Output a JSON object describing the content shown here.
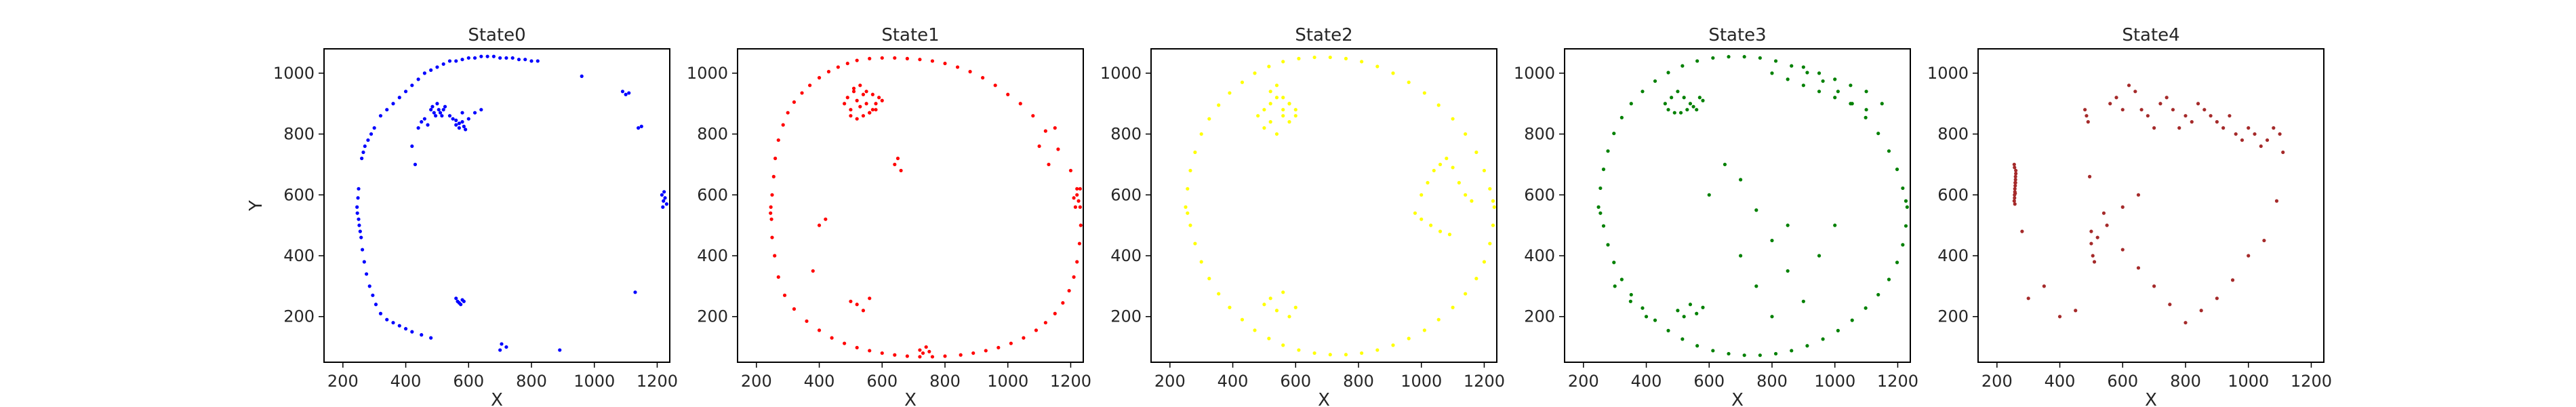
{
  "chart_data": [
    {
      "type": "scatter",
      "title": "State0",
      "xlabel": "X",
      "ylabel": "Y",
      "xlim": [
        140,
        1240
      ],
      "ylim": [
        50,
        1080
      ],
      "xticks": [
        "200",
        "400",
        "600",
        "800",
        "1000",
        "1200"
      ],
      "yticks": [
        "200",
        "400",
        "600",
        "800",
        "1000"
      ],
      "color": "#0000ff",
      "grid": false,
      "series": [
        {
          "x": [
            260,
            265,
            270,
            280,
            290,
            300,
            320,
            340,
            360,
            380,
            400,
            420,
            440,
            460,
            480,
            500,
            520,
            540,
            560,
            580,
            600,
            620,
            640,
            660,
            680,
            700,
            720,
            740,
            760,
            780,
            800,
            820,
            250,
            248,
            245,
            246,
            250,
            252,
            255,
            258,
            262,
            268,
            275,
            285,
            295,
            305,
            320,
            340,
            360,
            380,
            400,
            420,
            450,
            480,
            560,
            565,
            570,
            575,
            580,
            585,
            700,
            705,
            720,
            890,
            1130,
            1215,
            1220,
            1225,
            1230,
            1218,
            1222,
            560,
            570,
            580,
            585,
            590,
            540,
            550,
            560,
            570,
            580,
            480,
            485,
            490,
            495,
            500,
            505,
            510,
            515,
            520,
            525,
            1090,
            1100,
            1110,
            1140,
            1150,
            960,
            600,
            620,
            640,
            420,
            430,
            440,
            450,
            460,
            470
          ],
          "y": [
            720,
            740,
            760,
            780,
            800,
            820,
            860,
            880,
            900,
            920,
            940,
            960,
            980,
            1000,
            1010,
            1020,
            1030,
            1040,
            1040,
            1045,
            1050,
            1050,
            1055,
            1055,
            1055,
            1050,
            1050,
            1050,
            1045,
            1045,
            1040,
            1040,
            620,
            590,
            560,
            540,
            520,
            500,
            480,
            460,
            420,
            380,
            340,
            300,
            270,
            240,
            210,
            190,
            180,
            170,
            160,
            150,
            140,
            130,
            260,
            250,
            245,
            240,
            255,
            250,
            90,
            110,
            100,
            90,
            280,
            600,
            580,
            590,
            570,
            560,
            610,
            830,
            820,
            840,
            825,
            815,
            860,
            850,
            845,
            835,
            870,
            880,
            890,
            870,
            860,
            900,
            880,
            870,
            860,
            880,
            890,
            940,
            930,
            935,
            820,
            825,
            990,
            850,
            870,
            880,
            760,
            700,
            820,
            840,
            850,
            830
          ]
        }
      ]
    },
    {
      "type": "scatter",
      "title": "State1",
      "xlabel": "X",
      "ylabel": "",
      "xlim": [
        140,
        1240
      ],
      "ylim": [
        50,
        1080
      ],
      "xticks": [
        "200",
        "400",
        "600",
        "800",
        "1000",
        "1200"
      ],
      "yticks": [
        "200",
        "400",
        "600",
        "800",
        "1000"
      ],
      "color": "#ff0000",
      "grid": false,
      "series": [
        {
          "x": [
            250,
            255,
            260,
            270,
            285,
            300,
            320,
            345,
            370,
            400,
            430,
            460,
            490,
            520,
            560,
            600,
            640,
            680,
            720,
            760,
            800,
            840,
            880,
            920,
            960,
            1000,
            1040,
            1080,
            1120,
            1160,
            1200,
            1220,
            1230,
            1232,
            1228,
            1220,
            1210,
            1195,
            1175,
            1150,
            1120,
            1090,
            1050,
            1010,
            970,
            930,
            890,
            850,
            800,
            760,
            720,
            680,
            640,
            600,
            560,
            520,
            480,
            440,
            400,
            360,
            320,
            290,
            270,
            258,
            250,
            248,
            246,
            245,
            480,
            490,
            500,
            510,
            520,
            530,
            540,
            550,
            560,
            570,
            580,
            500,
            520,
            540,
            560,
            580,
            510,
            530,
            550,
            570,
            590,
            600,
            720,
            730,
            740,
            750,
            1220,
            1225,
            1215,
            1230,
            1210,
            640,
            650,
            660,
            1130,
            1150,
            1100,
            500,
            520,
            540,
            560,
            400,
            420,
            380
          ],
          "y": [
            600,
            660,
            720,
            780,
            830,
            870,
            905,
            935,
            960,
            985,
            1005,
            1020,
            1032,
            1042,
            1048,
            1050,
            1050,
            1048,
            1045,
            1040,
            1032,
            1020,
            1005,
            985,
            960,
            930,
            900,
            860,
            810,
            750,
            680,
            620,
            560,
            500,
            440,
            380,
            330,
            285,
            245,
            210,
            180,
            155,
            130,
            112,
            98,
            88,
            80,
            74,
            70,
            68,
            68,
            70,
            74,
            80,
            88,
            98,
            112,
            130,
            155,
            185,
            225,
            270,
            330,
            400,
            460,
            520,
            560,
            540,
            900,
            920,
            880,
            940,
            910,
            890,
            930,
            900,
            870,
            880,
            900,
            860,
            850,
            860,
            870,
            880,
            950,
            960,
            940,
            930,
            920,
            910,
            90,
            80,
            100,
            85,
            600,
            580,
            560,
            620,
            590,
            700,
            720,
            680,
            700,
            820,
            760,
            250,
            240,
            220,
            260,
            500,
            520,
            350
          ]
        }
      ]
    },
    {
      "type": "scatter",
      "title": "State2",
      "xlabel": "X",
      "ylabel": "",
      "xlim": [
        140,
        1240
      ],
      "ylim": [
        50,
        1080
      ],
      "xticks": [
        "200",
        "400",
        "600",
        "800",
        "1000",
        "1200"
      ],
      "yticks": [
        "200",
        "400",
        "600",
        "800",
        "1000"
      ],
      "color": "#ffff00",
      "grid": false,
      "series": [
        {
          "x": [
            250,
            256,
            265,
            280,
            300,
            325,
            355,
            390,
            430,
            470,
            515,
            560,
            610,
            660,
            710,
            760,
            810,
            860,
            910,
            960,
            1010,
            1055,
            1100,
            1140,
            1175,
            1200,
            1218,
            1228,
            1232,
            1228,
            1218,
            1200,
            1175,
            1140,
            1100,
            1055,
            1010,
            960,
            910,
            860,
            810,
            760,
            710,
            660,
            610,
            560,
            515,
            470,
            430,
            390,
            355,
            325,
            300,
            280,
            265,
            256,
            480,
            500,
            520,
            540,
            560,
            580,
            600,
            520,
            540,
            560,
            580,
            600,
            500,
            520,
            540,
            560,
            580,
            1000,
            1020,
            1040,
            1060,
            1080,
            1100,
            1120,
            1140,
            1160,
            980,
            1000,
            1030,
            1060,
            1090,
            500,
            520,
            540,
            560,
            580,
            600
          ],
          "y": [
            560,
            620,
            680,
            740,
            800,
            850,
            895,
            935,
            970,
            1000,
            1022,
            1038,
            1048,
            1052,
            1052,
            1048,
            1038,
            1022,
            1000,
            970,
            935,
            895,
            850,
            800,
            740,
            680,
            620,
            580,
            560,
            500,
            440,
            380,
            325,
            275,
            230,
            190,
            155,
            128,
            106,
            90,
            80,
            75,
            75,
            80,
            90,
            106,
            128,
            155,
            190,
            230,
            275,
            325,
            380,
            440,
            500,
            540,
            860,
            880,
            900,
            920,
            880,
            900,
            860,
            940,
            960,
            920,
            900,
            880,
            820,
            840,
            800,
            860,
            840,
            600,
            640,
            680,
            700,
            720,
            690,
            640,
            600,
            580,
            540,
            520,
            500,
            480,
            470,
            240,
            260,
            220,
            280,
            200,
            230
          ]
        }
      ]
    },
    {
      "type": "scatter",
      "title": "State3",
      "xlabel": "X",
      "ylabel": "",
      "xlim": [
        140,
        1240
      ],
      "ylim": [
        50,
        1080
      ],
      "xticks": [
        "200",
        "400",
        "600",
        "800",
        "1000",
        "1200"
      ],
      "yticks": [
        "200",
        "400",
        "600",
        "800",
        "1000"
      ],
      "color": "#008000",
      "grid": false,
      "series": [
        {
          "x": [
            248,
            254,
            264,
            278,
            297,
            322,
            352,
            388,
            428,
            470,
            515,
            562,
            612,
            662,
            712,
            762,
            812,
            862,
            912,
            962,
            1010,
            1055,
            1098,
            1138,
            1172,
            1198,
            1216,
            1226,
            1230,
            1226,
            1216,
            1198,
            1172,
            1138,
            1098,
            1055,
            1010,
            962,
            912,
            862,
            812,
            762,
            712,
            662,
            612,
            562,
            515,
            470,
            428,
            388,
            352,
            322,
            297,
            278,
            264,
            254,
            460,
            480,
            500,
            520,
            540,
            560,
            580,
            470,
            490,
            510,
            530,
            550,
            570,
            800,
            850,
            900,
            950,
            1000,
            1050,
            1100,
            900,
            950,
            1000,
            1050,
            1100,
            1150,
            700,
            750,
            800,
            850,
            300,
            350,
            400,
            600,
            650,
            700,
            750,
            800,
            850,
            900,
            950,
            1000,
            500,
            520,
            540,
            560,
            580
          ],
          "y": [
            560,
            622,
            684,
            744,
            802,
            854,
            900,
            940,
            974,
            1002,
            1024,
            1040,
            1050,
            1054,
            1054,
            1050,
            1040,
            1024,
            1002,
            974,
            940,
            900,
            854,
            802,
            744,
            684,
            622,
            580,
            560,
            498,
            436,
            378,
            322,
            272,
            228,
            188,
            154,
            126,
            104,
            88,
            78,
            73,
            73,
            78,
            88,
            104,
            126,
            154,
            188,
            228,
            272,
            322,
            378,
            436,
            498,
            540,
            900,
            920,
            940,
            920,
            900,
            880,
            910,
            880,
            870,
            870,
            880,
            890,
            920,
            1000,
            980,
            960,
            940,
            920,
            900,
            880,
            1020,
            1000,
            980,
            960,
            940,
            900,
            400,
            300,
            200,
            500,
            300,
            250,
            200,
            600,
            700,
            650,
            550,
            450,
            350,
            250,
            400,
            500,
            220,
            200,
            240,
            210,
            230
          ]
        }
      ]
    },
    {
      "type": "scatter",
      "title": "State4",
      "xlabel": "X",
      "ylabel": "",
      "xlim": [
        140,
        1240
      ],
      "ylim": [
        50,
        1080
      ],
      "xticks": [
        "200",
        "400",
        "600",
        "800",
        "1000",
        "1200"
      ],
      "yticks": [
        "200",
        "400",
        "600",
        "800",
        "1000"
      ],
      "color": "#a52a2a",
      "grid": false,
      "series": [
        {
          "x": [
            255,
            256,
            257,
            258,
            259,
            260,
            255,
            256,
            257,
            258,
            259,
            260,
            256,
            257,
            258,
            259,
            480,
            485,
            490,
            495,
            500,
            505,
            510,
            520,
            540,
            560,
            580,
            600,
            620,
            640,
            660,
            680,
            700,
            720,
            740,
            760,
            780,
            800,
            820,
            840,
            860,
            880,
            900,
            920,
            940,
            960,
            980,
            1000,
            1020,
            1040,
            1060,
            1080,
            1100,
            1110,
            1090,
            1050,
            1000,
            950,
            900,
            850,
            800,
            750,
            700,
            650,
            600,
            280,
            300,
            350,
            400,
            450,
            500,
            550,
            600,
            650
          ],
          "y": [
            580,
            600,
            620,
            640,
            660,
            680,
            700,
            590,
            610,
            630,
            650,
            670,
            690,
            570,
            605,
            640,
            880,
            860,
            840,
            660,
            480,
            400,
            380,
            460,
            540,
            900,
            920,
            880,
            960,
            940,
            880,
            860,
            820,
            900,
            920,
            880,
            820,
            860,
            840,
            900,
            880,
            860,
            840,
            820,
            860,
            800,
            780,
            820,
            800,
            760,
            780,
            820,
            800,
            740,
            580,
            450,
            400,
            320,
            260,
            220,
            180,
            240,
            300,
            360,
            420,
            480,
            260,
            300,
            200,
            220,
            440,
            500,
            560,
            600
          ]
        }
      ]
    }
  ]
}
